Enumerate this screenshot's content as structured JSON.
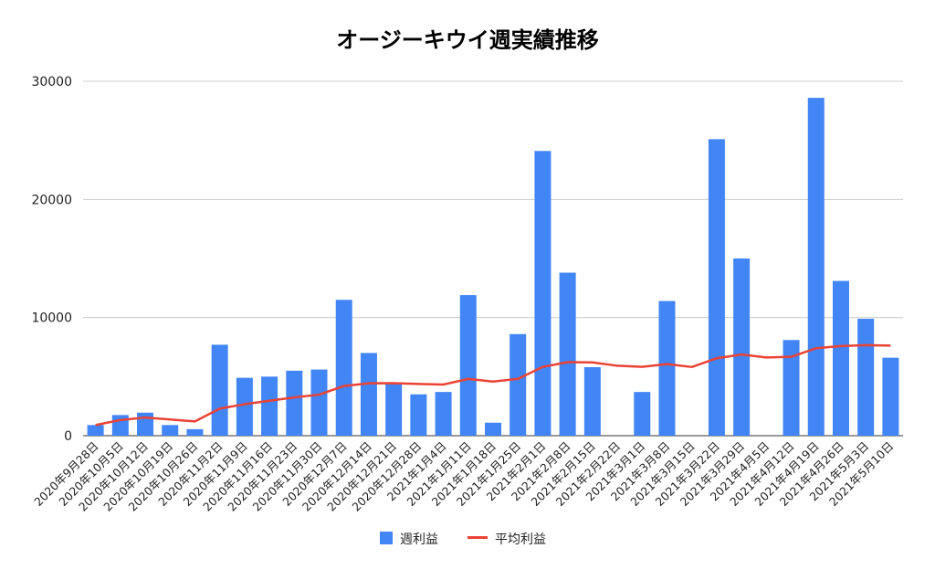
{
  "chart_data": {
    "type": "bar",
    "title": "オージーキウイ週実績推移",
    "xlabel": "",
    "ylabel": "",
    "ylim": [
      0,
      30000
    ],
    "yticks": [
      "0",
      "10000",
      "20000",
      "30000"
    ],
    "grid": true,
    "legend_position": "bottom",
    "categories": [
      "2020年9月28日",
      "2020年10月5日",
      "2020年10月12日",
      "2020年10月19日",
      "2020年10月26日",
      "2020年11月2日",
      "2020年11月9日",
      "2020年11月16日",
      "2020年11月23日",
      "2020年11月30日",
      "2020年12月7日",
      "2020年12月14日",
      "2020年12月21日",
      "2020年12月28日",
      "2021年1月4日",
      "2021年1月11日",
      "2021年1月18日",
      "2021年1月25日",
      "2021年2月1日",
      "2021年2月8日",
      "2021年2月15日",
      "2021年2月22日",
      "2021年3月1日",
      "2021年3月8日",
      "2021年3月15日",
      "2021年3月22日",
      "2021年3月29日",
      "2021年4月5日",
      "2021年4月12日",
      "2021年4月19日",
      "2021年4月26日",
      "2021年5月3日",
      "2021年5月10日"
    ],
    "series": [
      {
        "name": "週利益",
        "type": "bar",
        "color": "#4285f4",
        "values": [
          900,
          1750,
          1950,
          900,
          550,
          7700,
          4900,
          5000,
          5500,
          5600,
          11500,
          7000,
          4500,
          3500,
          3700,
          11900,
          1100,
          8600,
          24100,
          13800,
          5800,
          0,
          3700,
          11400,
          0,
          25100,
          15000,
          0,
          8100,
          28600,
          13100,
          9900,
          6600
        ]
      },
      {
        "name": "平均利益",
        "type": "line",
        "color": "#ea4335",
        "values": [
          900,
          1325,
          1533,
          1375,
          1210,
          2292,
          2664,
          2956,
          3239,
          3475,
          4205,
          4438,
          4442,
          4375,
          4330,
          4803,
          4585,
          4808,
          5824,
          6223,
          6202,
          5920,
          5824,
          6056,
          5814,
          6556,
          6869,
          6623,
          6674,
          7405,
          7589,
          7661,
          7629
        ]
      }
    ]
  }
}
